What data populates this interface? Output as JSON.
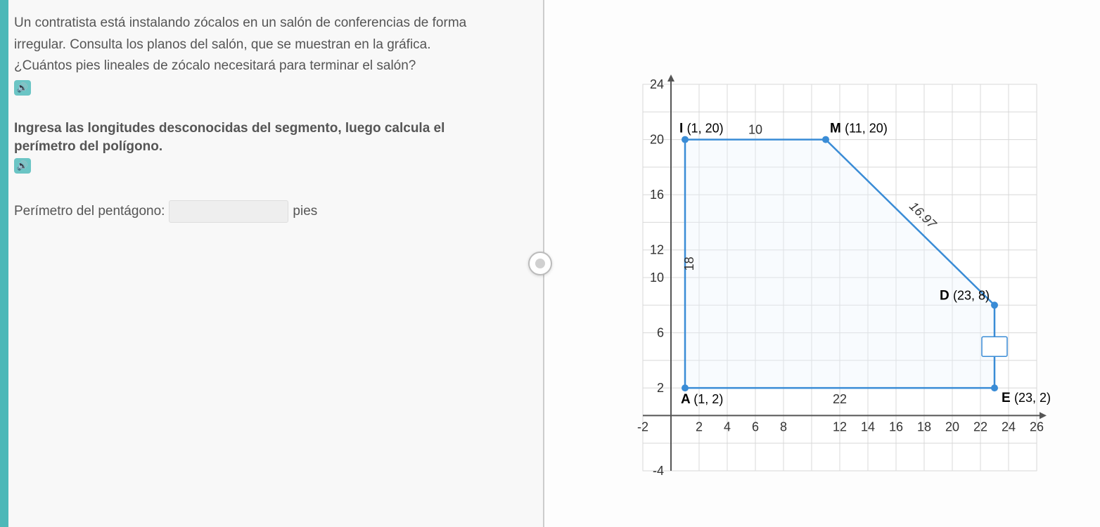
{
  "problem": {
    "line1": "Un contratista está instalando zócalos en un salón de conferencias de forma",
    "line2": "irregular. Consulta los planos del salón, que se muestran en la gráfica.",
    "line3": "¿Cuántos pies lineales de zócalo necesitará para terminar el salón?"
  },
  "instruction": {
    "line1": "Ingresa las longitudes desconocidas del segmento, luego calcula el",
    "line2": "perímetro del polígono."
  },
  "answer": {
    "label": "Perímetro del pentágono:",
    "unit": "pies",
    "value": ""
  },
  "chart": {
    "type": "coordinate-polygon",
    "background_color": "#ffffff",
    "grid_color": "#d8d8d8",
    "axis_color": "#555555",
    "polygon_stroke": "#3a8cd6",
    "polygon_fill": "#eaf3fb",
    "point_fill": "#3a8cd6",
    "x_ticks": [
      -2,
      2,
      4,
      6,
      8,
      12,
      14,
      16,
      18,
      20,
      22,
      24,
      26
    ],
    "y_ticks": [
      -4,
      2,
      6,
      10,
      12,
      16,
      20,
      24
    ],
    "xlim": [
      -2,
      26
    ],
    "ylim": [
      -4,
      24
    ],
    "grid_step": 2,
    "points": {
      "I": {
        "x": 1,
        "y": 20,
        "label": "I",
        "coord": "(1, 20)"
      },
      "M": {
        "x": 11,
        "y": 20,
        "label": "M",
        "coord": "(11, 20)"
      },
      "D": {
        "x": 23,
        "y": 8,
        "label": "D",
        "coord": "(23, 8)"
      },
      "E": {
        "x": 23,
        "y": 2,
        "label": "E",
        "coord": "(23, 2)"
      },
      "A": {
        "x": 1,
        "y": 2,
        "label": "A",
        "coord": "(1, 2)"
      }
    },
    "segment_labels": {
      "IM": "10",
      "MD": "16.97",
      "DE_blank": true,
      "AE": "22",
      "IA": "18"
    },
    "label_fontsize": 18,
    "point_radius": 5
  }
}
